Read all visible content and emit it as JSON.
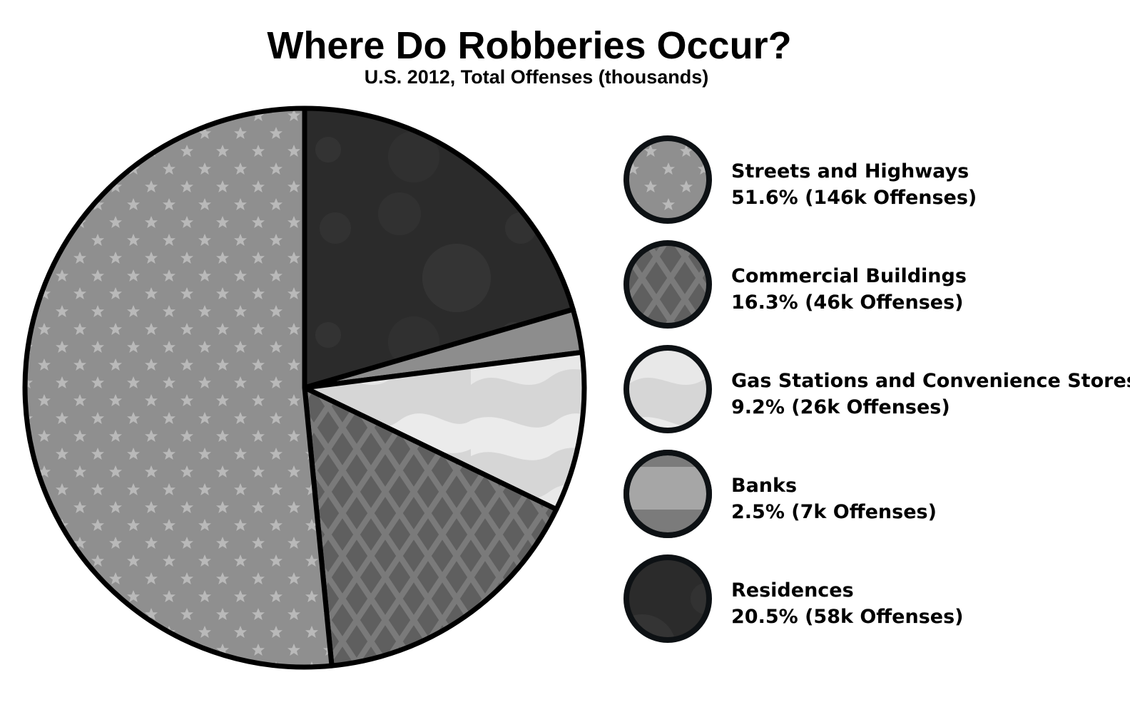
{
  "chart_data": {
    "type": "pie",
    "title": "Where Do Robberies Occur?",
    "subtitle": "U.S. 2012, Total Offenses (thousands)",
    "legend_position": "right",
    "slices": [
      {
        "name": "Residences",
        "value": 58,
        "percent": 20.5,
        "detail": "20.5% (58k Offenses)",
        "color": "#2b2b2b",
        "pattern": "circles"
      },
      {
        "name": "Banks",
        "value": 7,
        "percent": 2.5,
        "detail": "2.5% (7k Offenses)",
        "color": "#8d8d8d",
        "pattern": "band"
      },
      {
        "name": "Gas Stations and Convenience Stores",
        "value": 26,
        "percent": 9.2,
        "detail": "9.2% (26k Offenses)",
        "color": "#dadada",
        "pattern": "camo"
      },
      {
        "name": "Commercial Buildings",
        "value": 46,
        "percent": 16.3,
        "detail": "16.3% (46k Offenses)",
        "color": "#5f5f5f",
        "pattern": "diamonds"
      },
      {
        "name": "Streets and Highways",
        "value": 146,
        "percent": 51.6,
        "detail": "51.6% (146k Offenses)",
        "color": "#8f8f8f",
        "pattern": "stars"
      }
    ],
    "legend_order": [
      "Streets and Highways",
      "Commercial Buildings",
      "Gas Stations and Convenience Stores",
      "Banks",
      "Residences"
    ]
  }
}
